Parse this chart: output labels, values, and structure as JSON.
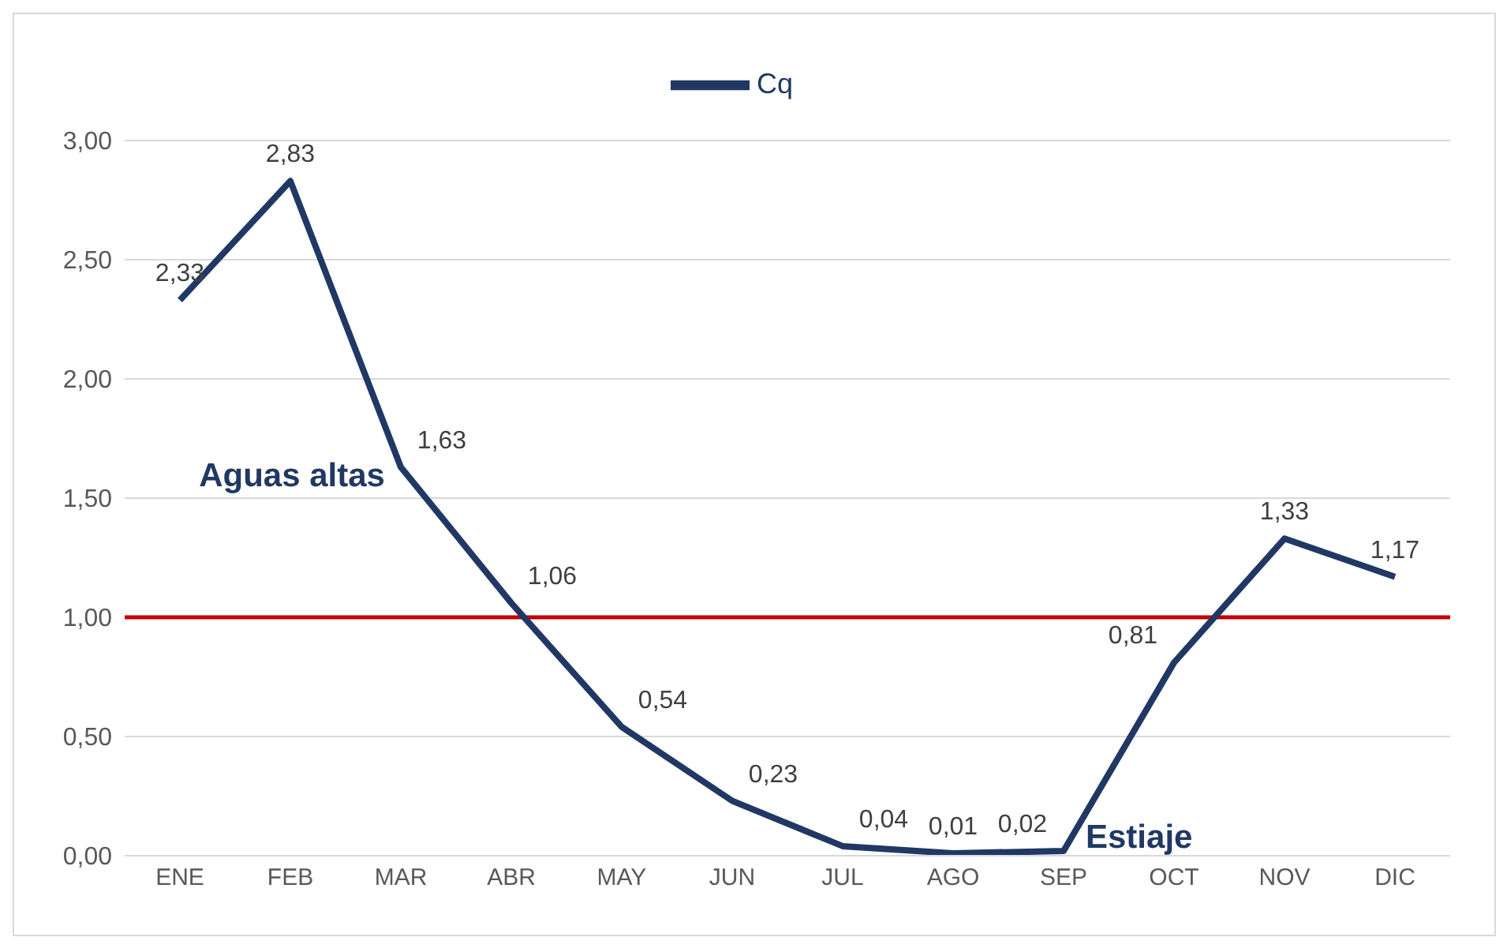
{
  "chart_data": {
    "type": "line",
    "categories": [
      "ENE",
      "FEB",
      "MAR",
      "ABR",
      "MAY",
      "JUN",
      "JUL",
      "AGO",
      "SEP",
      "OCT",
      "NOV",
      "DIC"
    ],
    "series": [
      {
        "name": "Cq",
        "color": "#203864",
        "values": [
          2.33,
          2.83,
          1.63,
          1.06,
          0.54,
          0.23,
          0.04,
          0.01,
          0.02,
          0.81,
          1.33,
          1.17
        ],
        "value_labels": [
          "2,33",
          "2,83",
          "1,63",
          "1,06",
          "0,54",
          "0,23",
          "0,04",
          "0,01",
          "0,02",
          "0,81",
          "1,33",
          "1,17"
        ]
      }
    ],
    "ylim": [
      0,
      3
    ],
    "yticks": [
      {
        "value": 0,
        "label": "0,00"
      },
      {
        "value": 0.5,
        "label": "0,50"
      },
      {
        "value": 1,
        "label": "1,00"
      },
      {
        "value": 1.5,
        "label": "1,50"
      },
      {
        "value": 2,
        "label": "2,00"
      },
      {
        "value": 2.5,
        "label": "2,50"
      },
      {
        "value": 3,
        "label": "3,00"
      }
    ],
    "grid": "y",
    "legend": "top",
    "marker": "none",
    "line_style": "solid",
    "ref_lines": [
      {
        "axis": "y",
        "value": 1,
        "color": "#c00000"
      }
    ],
    "annotations": [
      {
        "text": "Aguas altas",
        "x": "MAR",
        "y": 1.63
      },
      {
        "text": "Estiaje",
        "x": "SEP",
        "y": 0.02
      }
    ]
  }
}
